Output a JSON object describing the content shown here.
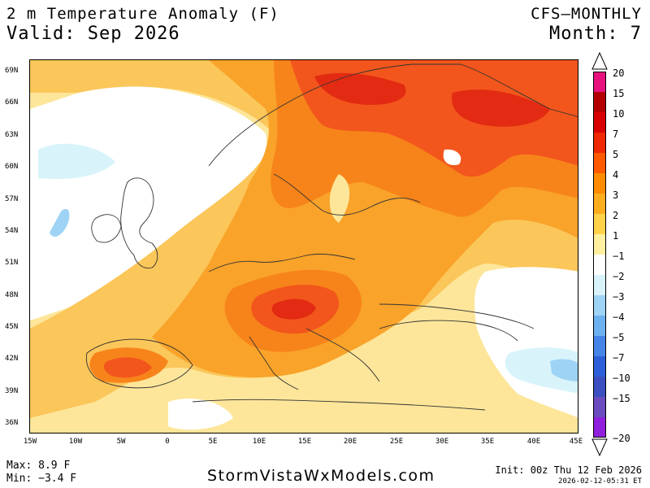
{
  "header": {
    "title": "2 m Temperature Anomaly (F)",
    "valid": "Valid: Sep 2026",
    "model": "CFS—MONTHLY",
    "month": "Month: 7"
  },
  "axes": {
    "lat_labels": [
      "69N",
      "66N",
      "63N",
      "60N",
      "57N",
      "54N",
      "51N",
      "48N",
      "45N",
      "42N",
      "39N",
      "36N"
    ],
    "lon_labels": [
      "15W",
      "10W",
      "5W",
      "0",
      "5E",
      "10E",
      "15E",
      "20E",
      "25E",
      "30E",
      "35E",
      "40E",
      "45E"
    ]
  },
  "legend": {
    "labels": [
      "20",
      "15",
      "10",
      "7",
      "5",
      "4",
      "3",
      "2",
      "1",
      "−1",
      "−2",
      "−3",
      "−4",
      "−5",
      "−7",
      "−10",
      "−15",
      "−20"
    ],
    "colors": [
      "#e8127f",
      "#b40000",
      "#d90000",
      "#ef2800",
      "#ff5a00",
      "#ff8c00",
      "#ffad1f",
      "#ffd24a",
      "#fff0a0",
      "#ffffff",
      "#d8f4fa",
      "#9ed3f5",
      "#6cb1f0",
      "#4585e8",
      "#2d60d8",
      "#3b4fc0",
      "#6a4bc0",
      "#8f1fdc"
    ]
  },
  "footer": {
    "max": "Max: 8.9 F",
    "min": "Min: −3.4 F",
    "site": "StormVistaWxModels.com",
    "init": "Init: 00z Thu 12 Feb 2026",
    "timestamp": "2026-02-12-05:31 ET"
  },
  "colors": {
    "anom_1_2": "#fde69a",
    "anom_2_3": "#fbc65a",
    "anom_3_4": "#f9a32a",
    "anom_4_5": "#f7841a",
    "anom_5_7": "#f2561c",
    "anom_7_10": "#e22b12",
    "anom_neg": "#d8f4fa",
    "anom_neg2": "#9ed3f5"
  }
}
